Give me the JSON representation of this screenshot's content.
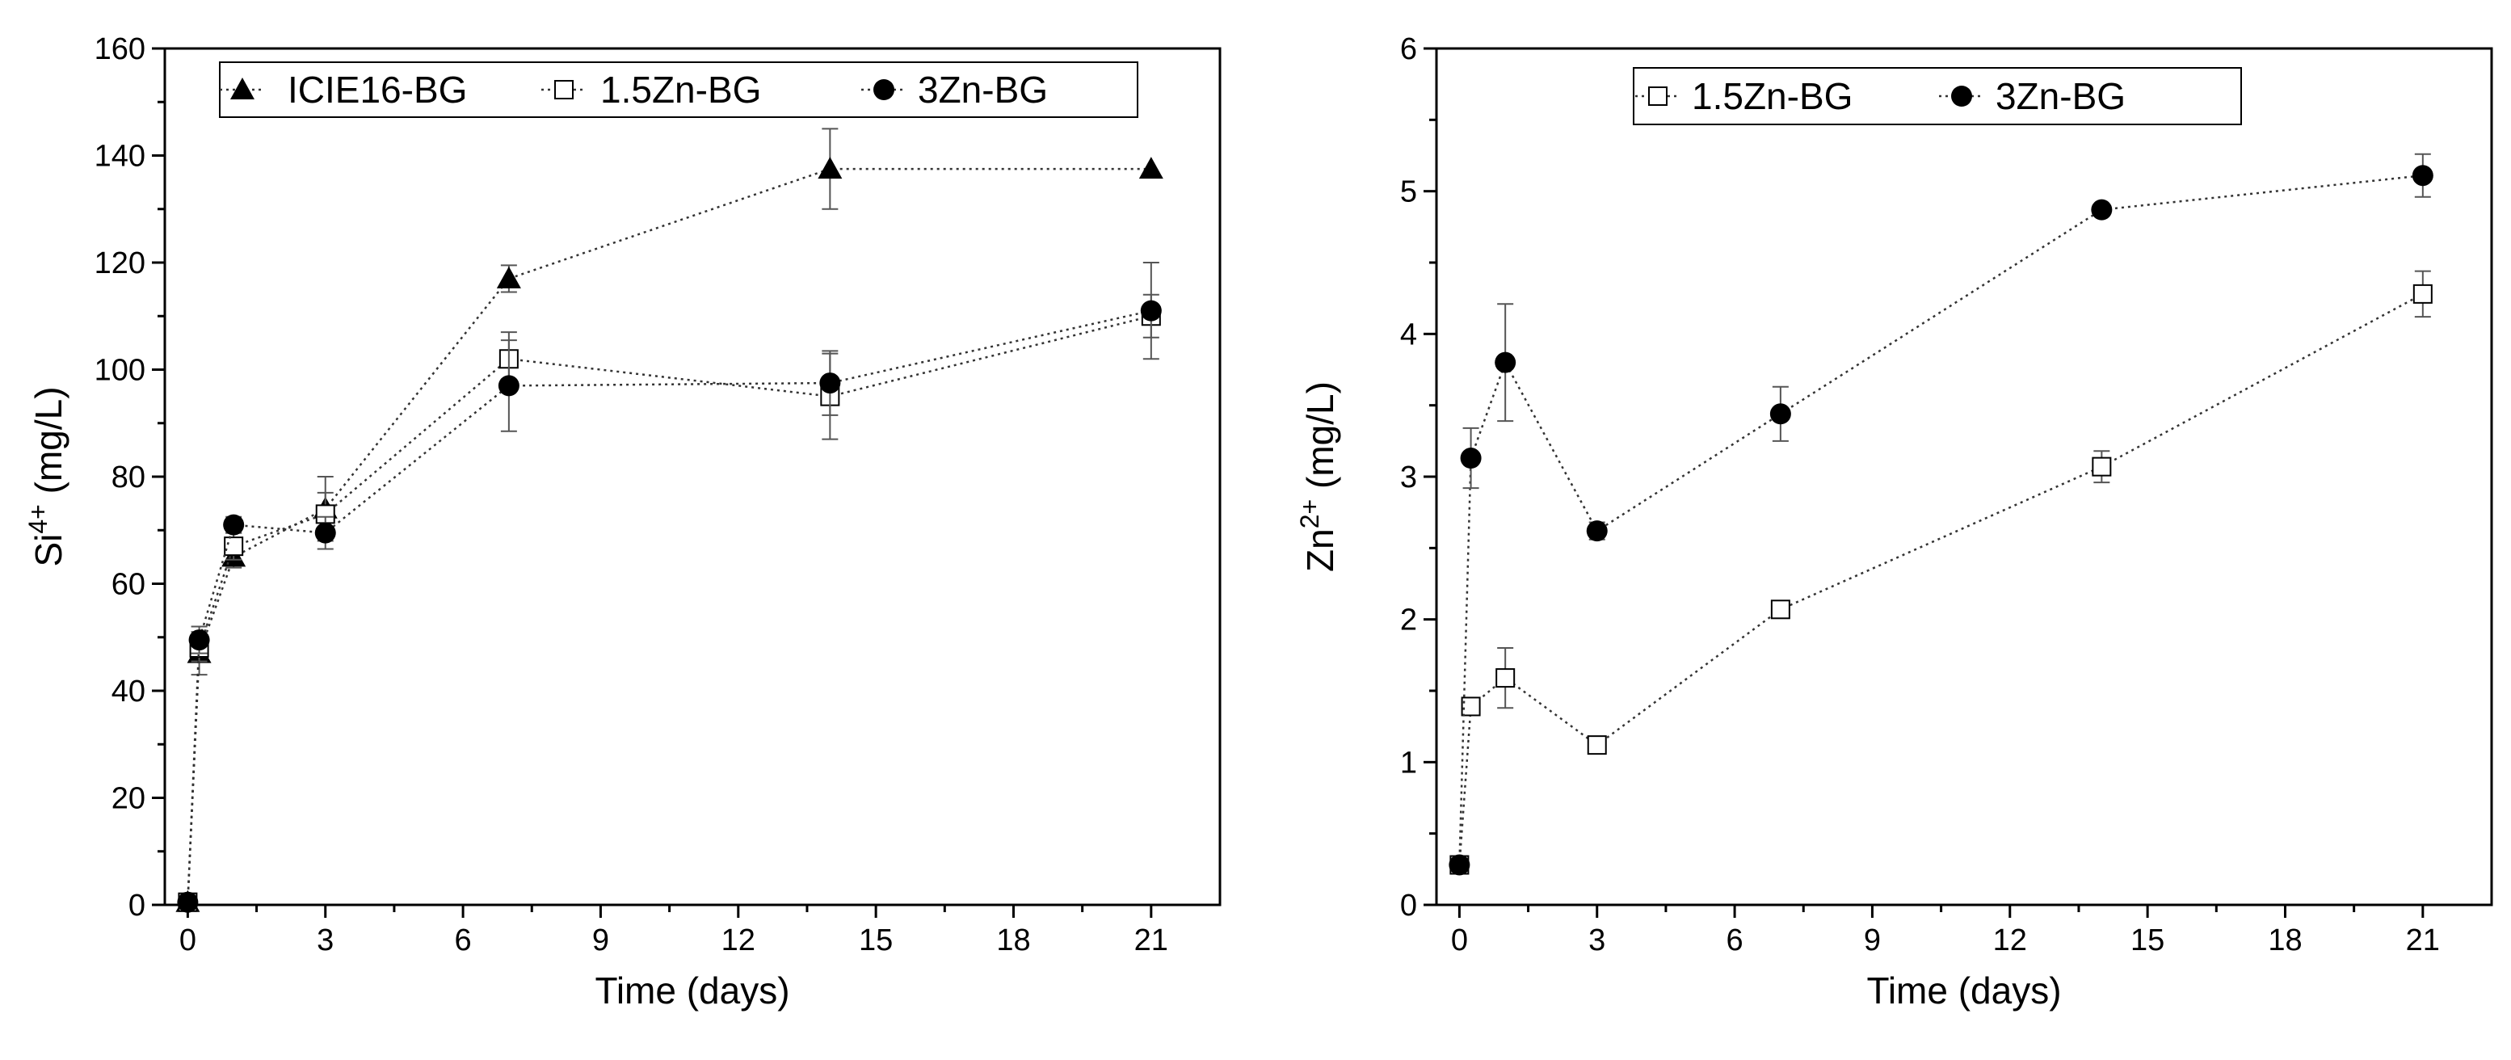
{
  "chart_data": [
    {
      "type": "line",
      "xlabel": "Time (days)",
      "ylabel": {
        "base": "Si",
        "sup": "4+",
        "unit": " (mg/L)"
      },
      "xlim": [
        -0.5,
        22.5
      ],
      "ylim": [
        0,
        160
      ],
      "xticks": [
        0,
        3,
        6,
        9,
        12,
        15,
        18,
        21
      ],
      "yticks": [
        0,
        20,
        40,
        60,
        80,
        100,
        120,
        140,
        160
      ],
      "grid": false,
      "line_style": "dotted",
      "legend_position": "top",
      "series": [
        {
          "name": "ICIE16-BG",
          "marker": "triangle-filled",
          "x": [
            0,
            0.25,
            1,
            3,
            7,
            14,
            21
          ],
          "y": [
            0.5,
            47,
            65,
            74,
            117,
            137.5,
            137.5
          ],
          "err": [
            0,
            4,
            2,
            6,
            2.5,
            7.5,
            0
          ]
        },
        {
          "name": "1.5Zn-BG",
          "marker": "square-open",
          "x": [
            0,
            0.25,
            1,
            3,
            7,
            14,
            21
          ],
          "y": [
            0.5,
            48,
            67,
            73,
            102,
            95,
            110
          ],
          "err": [
            0,
            2.5,
            2.5,
            4,
            5,
            8,
            4
          ]
        },
        {
          "name": "3Zn-BG",
          "marker": "circle-filled",
          "x": [
            0,
            0.25,
            1,
            3,
            7,
            14,
            21
          ],
          "y": [
            0.5,
            49.5,
            71,
            69.5,
            97,
            97.5,
            111
          ],
          "err": [
            0,
            2.5,
            1.5,
            3,
            8.5,
            6,
            9
          ]
        }
      ]
    },
    {
      "type": "line",
      "xlabel": "Time (days)",
      "ylabel": {
        "base": "Zn",
        "sup": "2+",
        "unit": " (mg/L)"
      },
      "xlim": [
        -0.5,
        22.5
      ],
      "ylim": [
        0,
        6
      ],
      "xticks": [
        0,
        3,
        6,
        9,
        12,
        15,
        18,
        21
      ],
      "yticks": [
        0,
        1,
        2,
        3,
        4,
        5,
        6
      ],
      "grid": false,
      "line_style": "dotted",
      "legend_position": "top",
      "series": [
        {
          "name": "1.5Zn-BG",
          "marker": "square-open",
          "x": [
            0,
            0.25,
            1,
            3,
            7,
            14,
            21
          ],
          "y": [
            0.28,
            1.39,
            1.59,
            1.12,
            2.07,
            3.07,
            4.28
          ],
          "err": [
            0,
            0.04,
            0.21,
            0.04,
            0.04,
            0.11,
            0.16
          ]
        },
        {
          "name": "3Zn-BG",
          "marker": "circle-filled",
          "x": [
            0,
            0.25,
            1,
            3,
            7,
            14,
            21
          ],
          "y": [
            0.28,
            3.13,
            3.8,
            2.62,
            3.44,
            4.87,
            5.11
          ],
          "err": [
            0,
            0.21,
            0.41,
            0.06,
            0.19,
            0.03,
            0.15
          ]
        }
      ]
    }
  ]
}
